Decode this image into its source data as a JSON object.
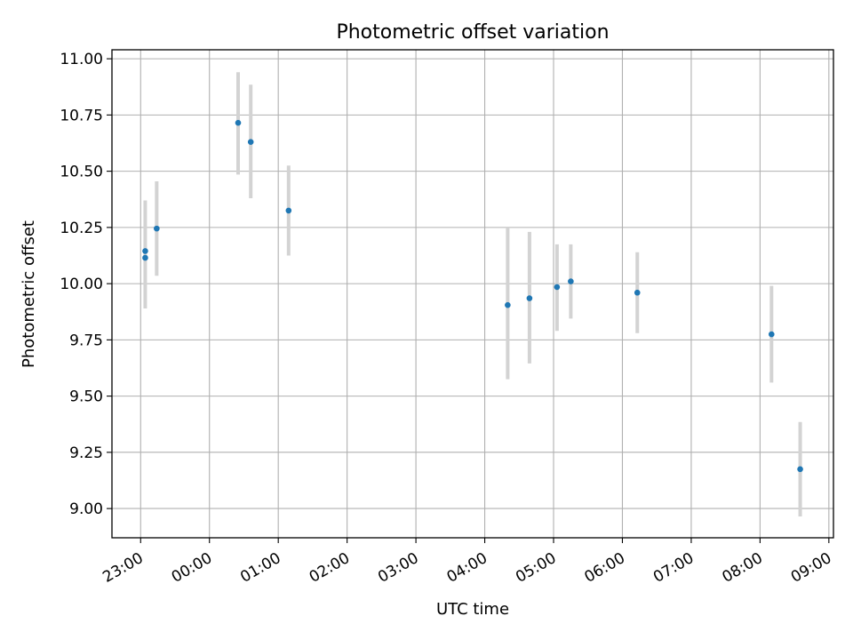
{
  "chart_data": {
    "type": "scatter",
    "title": "Photometric offset variation",
    "xlabel": "UTC time",
    "ylabel": "Photometric offset",
    "x_tick_labels": [
      "23:00",
      "00:00",
      "01:00",
      "02:00",
      "03:00",
      "04:00",
      "05:00",
      "06:00",
      "07:00",
      "08:00",
      "09:00"
    ],
    "y_tick_labels": [
      "9.00",
      "9.25",
      "9.50",
      "9.75",
      "10.00",
      "10.25",
      "10.50",
      "10.75",
      "11.00"
    ],
    "y_ticks": [
      9.0,
      9.25,
      9.5,
      9.75,
      10.0,
      10.25,
      10.5,
      10.75,
      11.0
    ],
    "x_ticks": [
      "23:00",
      "00:00",
      "01:00",
      "02:00",
      "03:00",
      "04:00",
      "05:00",
      "06:00",
      "07:00",
      "08:00",
      "09:00"
    ],
    "xlim": [
      "22:35",
      "09:04"
    ],
    "ylim": [
      8.87,
      11.04
    ],
    "grid": true,
    "points": [
      {
        "x": "23:04",
        "y": 10.145,
        "err_low": 9.89,
        "err_high": 10.37
      },
      {
        "x": "23:04",
        "y": 10.115
      },
      {
        "x": "23:14",
        "y": 10.245,
        "err_low": 10.035,
        "err_high": 10.455
      },
      {
        "x": "00:25",
        "y": 10.715,
        "err_low": 10.485,
        "err_high": 10.94
      },
      {
        "x": "00:36",
        "y": 10.63,
        "err_low": 10.38,
        "err_high": 10.885
      },
      {
        "x": "01:09",
        "y": 10.325,
        "err_low": 10.125,
        "err_high": 10.525
      },
      {
        "x": "04:20",
        "y": 9.905,
        "err_low": 9.575,
        "err_high": 10.25
      },
      {
        "x": "04:39",
        "y": 9.935,
        "err_low": 9.645,
        "err_high": 10.23
      },
      {
        "x": "05:03",
        "y": 9.985,
        "err_low": 9.79,
        "err_high": 10.175
      },
      {
        "x": "05:15",
        "y": 10.01,
        "err_low": 9.845,
        "err_high": 10.175
      },
      {
        "x": "06:13",
        "y": 9.96,
        "err_low": 9.78,
        "err_high": 10.14
      },
      {
        "x": "08:10",
        "y": 9.775,
        "err_low": 9.56,
        "err_high": 9.99
      },
      {
        "x": "08:35",
        "y": 9.175,
        "err_low": 8.965,
        "err_high": 9.385
      }
    ],
    "point_color": "#1f77b4",
    "errorbar_color": "#d3d3d3",
    "grid_color": "#b0b0b0"
  }
}
